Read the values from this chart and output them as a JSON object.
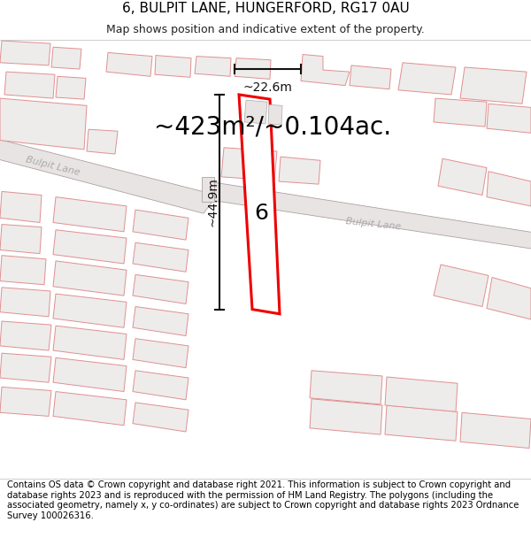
{
  "title": "6, BULPIT LANE, HUNGERFORD, RG17 0AU",
  "subtitle": "Map shows position and indicative extent of the property.",
  "footer": "Contains OS data © Crown copyright and database right 2021. This information is subject to Crown copyright and database rights 2023 and is reproduced with the permission of HM Land Registry. The polygons (including the associated geometry, namely x, y co-ordinates) are subject to Crown copyright and database rights 2023 Ordnance Survey 100026316.",
  "area_label": "~423m²/~0.104ac.",
  "width_label": "~22.6m",
  "height_label": "~44.9m",
  "number_label": "6",
  "background_color": "#ffffff",
  "map_bg_color": "#ffffff",
  "road_fill_color": "#e8e4e4",
  "road_edge_color": "#b0a0a0",
  "bld_fill_color": "#eeebeb",
  "bld_edge_color": "#e09090",
  "highlight_color": "#ee0000",
  "dim_color": "#111111",
  "road_label_color": "#aaaaaa",
  "title_fontsize": 11,
  "subtitle_fontsize": 9,
  "footer_fontsize": 7.2,
  "area_fontsize": 20,
  "number_fontsize": 18,
  "dim_fontsize": 10,
  "road_label_fontsize": 8
}
